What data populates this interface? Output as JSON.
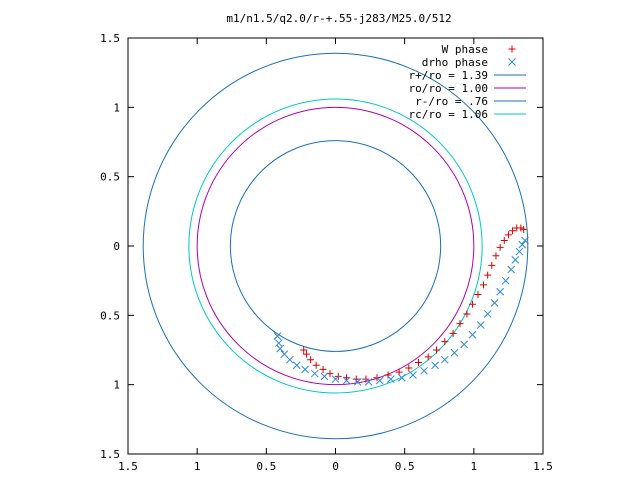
{
  "chart_data": {
    "type": "scatter",
    "title": "m1/n1.5/q2.0/r-+.55-j283/M25.0/512",
    "xlabel": "",
    "ylabel": "",
    "xlim": [
      -1.5,
      1.5
    ],
    "ylim": [
      -1.5,
      1.5
    ],
    "grid": false,
    "legend_position": "top-right",
    "xticks": [
      {
        "value": -1.5,
        "label": "1.5"
      },
      {
        "value": -1.0,
        "label": "1"
      },
      {
        "value": -0.5,
        "label": "0.5"
      },
      {
        "value": 0.0,
        "label": "0"
      },
      {
        "value": 0.5,
        "label": "0.5"
      },
      {
        "value": 1.0,
        "label": "1"
      },
      {
        "value": 1.5,
        "label": "1.5"
      }
    ],
    "yticks": [
      {
        "value": 1.5,
        "label": "1.5"
      },
      {
        "value": 1.0,
        "label": "1"
      },
      {
        "value": 0.5,
        "label": "0.5"
      },
      {
        "value": 0.0,
        "label": "0"
      },
      {
        "value": -0.5,
        "label": "0.5"
      },
      {
        "value": -1.0,
        "label": "1"
      },
      {
        "value": -1.5,
        "label": "1.5"
      }
    ],
    "circles": [
      {
        "label": "r+/ro = 1.39",
        "radius": 1.39,
        "color": "#1c6fbd"
      },
      {
        "label": "ro/ro = 1.00",
        "radius": 1.0,
        "color": "#b000b0"
      },
      {
        "label": "r-/ro = .76",
        "radius": 0.76,
        "color": "#1c6fbd"
      },
      {
        "label": "rc/ro = 1.06",
        "radius": 1.06,
        "color": "#00c8c8"
      }
    ],
    "series": [
      {
        "name": "W phase",
        "marker": "+",
        "color": "#e00000",
        "points": [
          [
            -0.23,
            -0.75
          ],
          [
            -0.21,
            -0.78
          ],
          [
            -0.18,
            -0.82
          ],
          [
            -0.14,
            -0.86
          ],
          [
            -0.09,
            -0.89
          ],
          [
            -0.04,
            -0.92
          ],
          [
            0.02,
            -0.94
          ],
          [
            0.08,
            -0.95
          ],
          [
            0.15,
            -0.96
          ],
          [
            0.22,
            -0.96
          ],
          [
            0.3,
            -0.95
          ],
          [
            0.38,
            -0.93
          ],
          [
            0.46,
            -0.91
          ],
          [
            0.53,
            -0.88
          ],
          [
            0.6,
            -0.84
          ],
          [
            0.67,
            -0.8
          ],
          [
            0.73,
            -0.75
          ],
          [
            0.79,
            -0.69
          ],
          [
            0.85,
            -0.63
          ],
          [
            0.9,
            -0.56
          ],
          [
            0.95,
            -0.49
          ],
          [
            0.99,
            -0.42
          ],
          [
            1.03,
            -0.35
          ],
          [
            1.07,
            -0.28
          ],
          [
            1.1,
            -0.21
          ],
          [
            1.13,
            -0.14
          ],
          [
            1.16,
            -0.07
          ],
          [
            1.19,
            -0.01
          ],
          [
            1.22,
            0.04
          ],
          [
            1.25,
            0.08
          ],
          [
            1.28,
            0.11
          ],
          [
            1.31,
            0.13
          ],
          [
            1.34,
            0.13
          ],
          [
            1.36,
            0.12
          ]
        ]
      },
      {
        "name": "drho phase",
        "marker": "x",
        "color": "#2a8ae0",
        "points": [
          [
            -0.42,
            -0.65
          ],
          [
            -0.41,
            -0.7
          ],
          [
            -0.4,
            -0.74
          ],
          [
            -0.37,
            -0.78
          ],
          [
            -0.33,
            -0.82
          ],
          [
            -0.28,
            -0.86
          ],
          [
            -0.22,
            -0.89
          ],
          [
            -0.15,
            -0.92
          ],
          [
            -0.08,
            -0.94
          ],
          [
            0.0,
            -0.96
          ],
          [
            0.08,
            -0.97
          ],
          [
            0.16,
            -0.98
          ],
          [
            0.24,
            -0.98
          ],
          [
            0.32,
            -0.97
          ],
          [
            0.4,
            -0.96
          ],
          [
            0.48,
            -0.95
          ],
          [
            0.56,
            -0.93
          ],
          [
            0.64,
            -0.9
          ],
          [
            0.72,
            -0.86
          ],
          [
            0.79,
            -0.82
          ],
          [
            0.86,
            -0.77
          ],
          [
            0.93,
            -0.71
          ],
          [
            0.99,
            -0.64
          ],
          [
            1.05,
            -0.57
          ],
          [
            1.1,
            -0.49
          ],
          [
            1.15,
            -0.41
          ],
          [
            1.19,
            -0.33
          ],
          [
            1.23,
            -0.25
          ],
          [
            1.27,
            -0.17
          ],
          [
            1.3,
            -0.1
          ],
          [
            1.33,
            -0.04
          ],
          [
            1.35,
            0.01
          ],
          [
            1.37,
            0.04
          ]
        ]
      }
    ]
  }
}
